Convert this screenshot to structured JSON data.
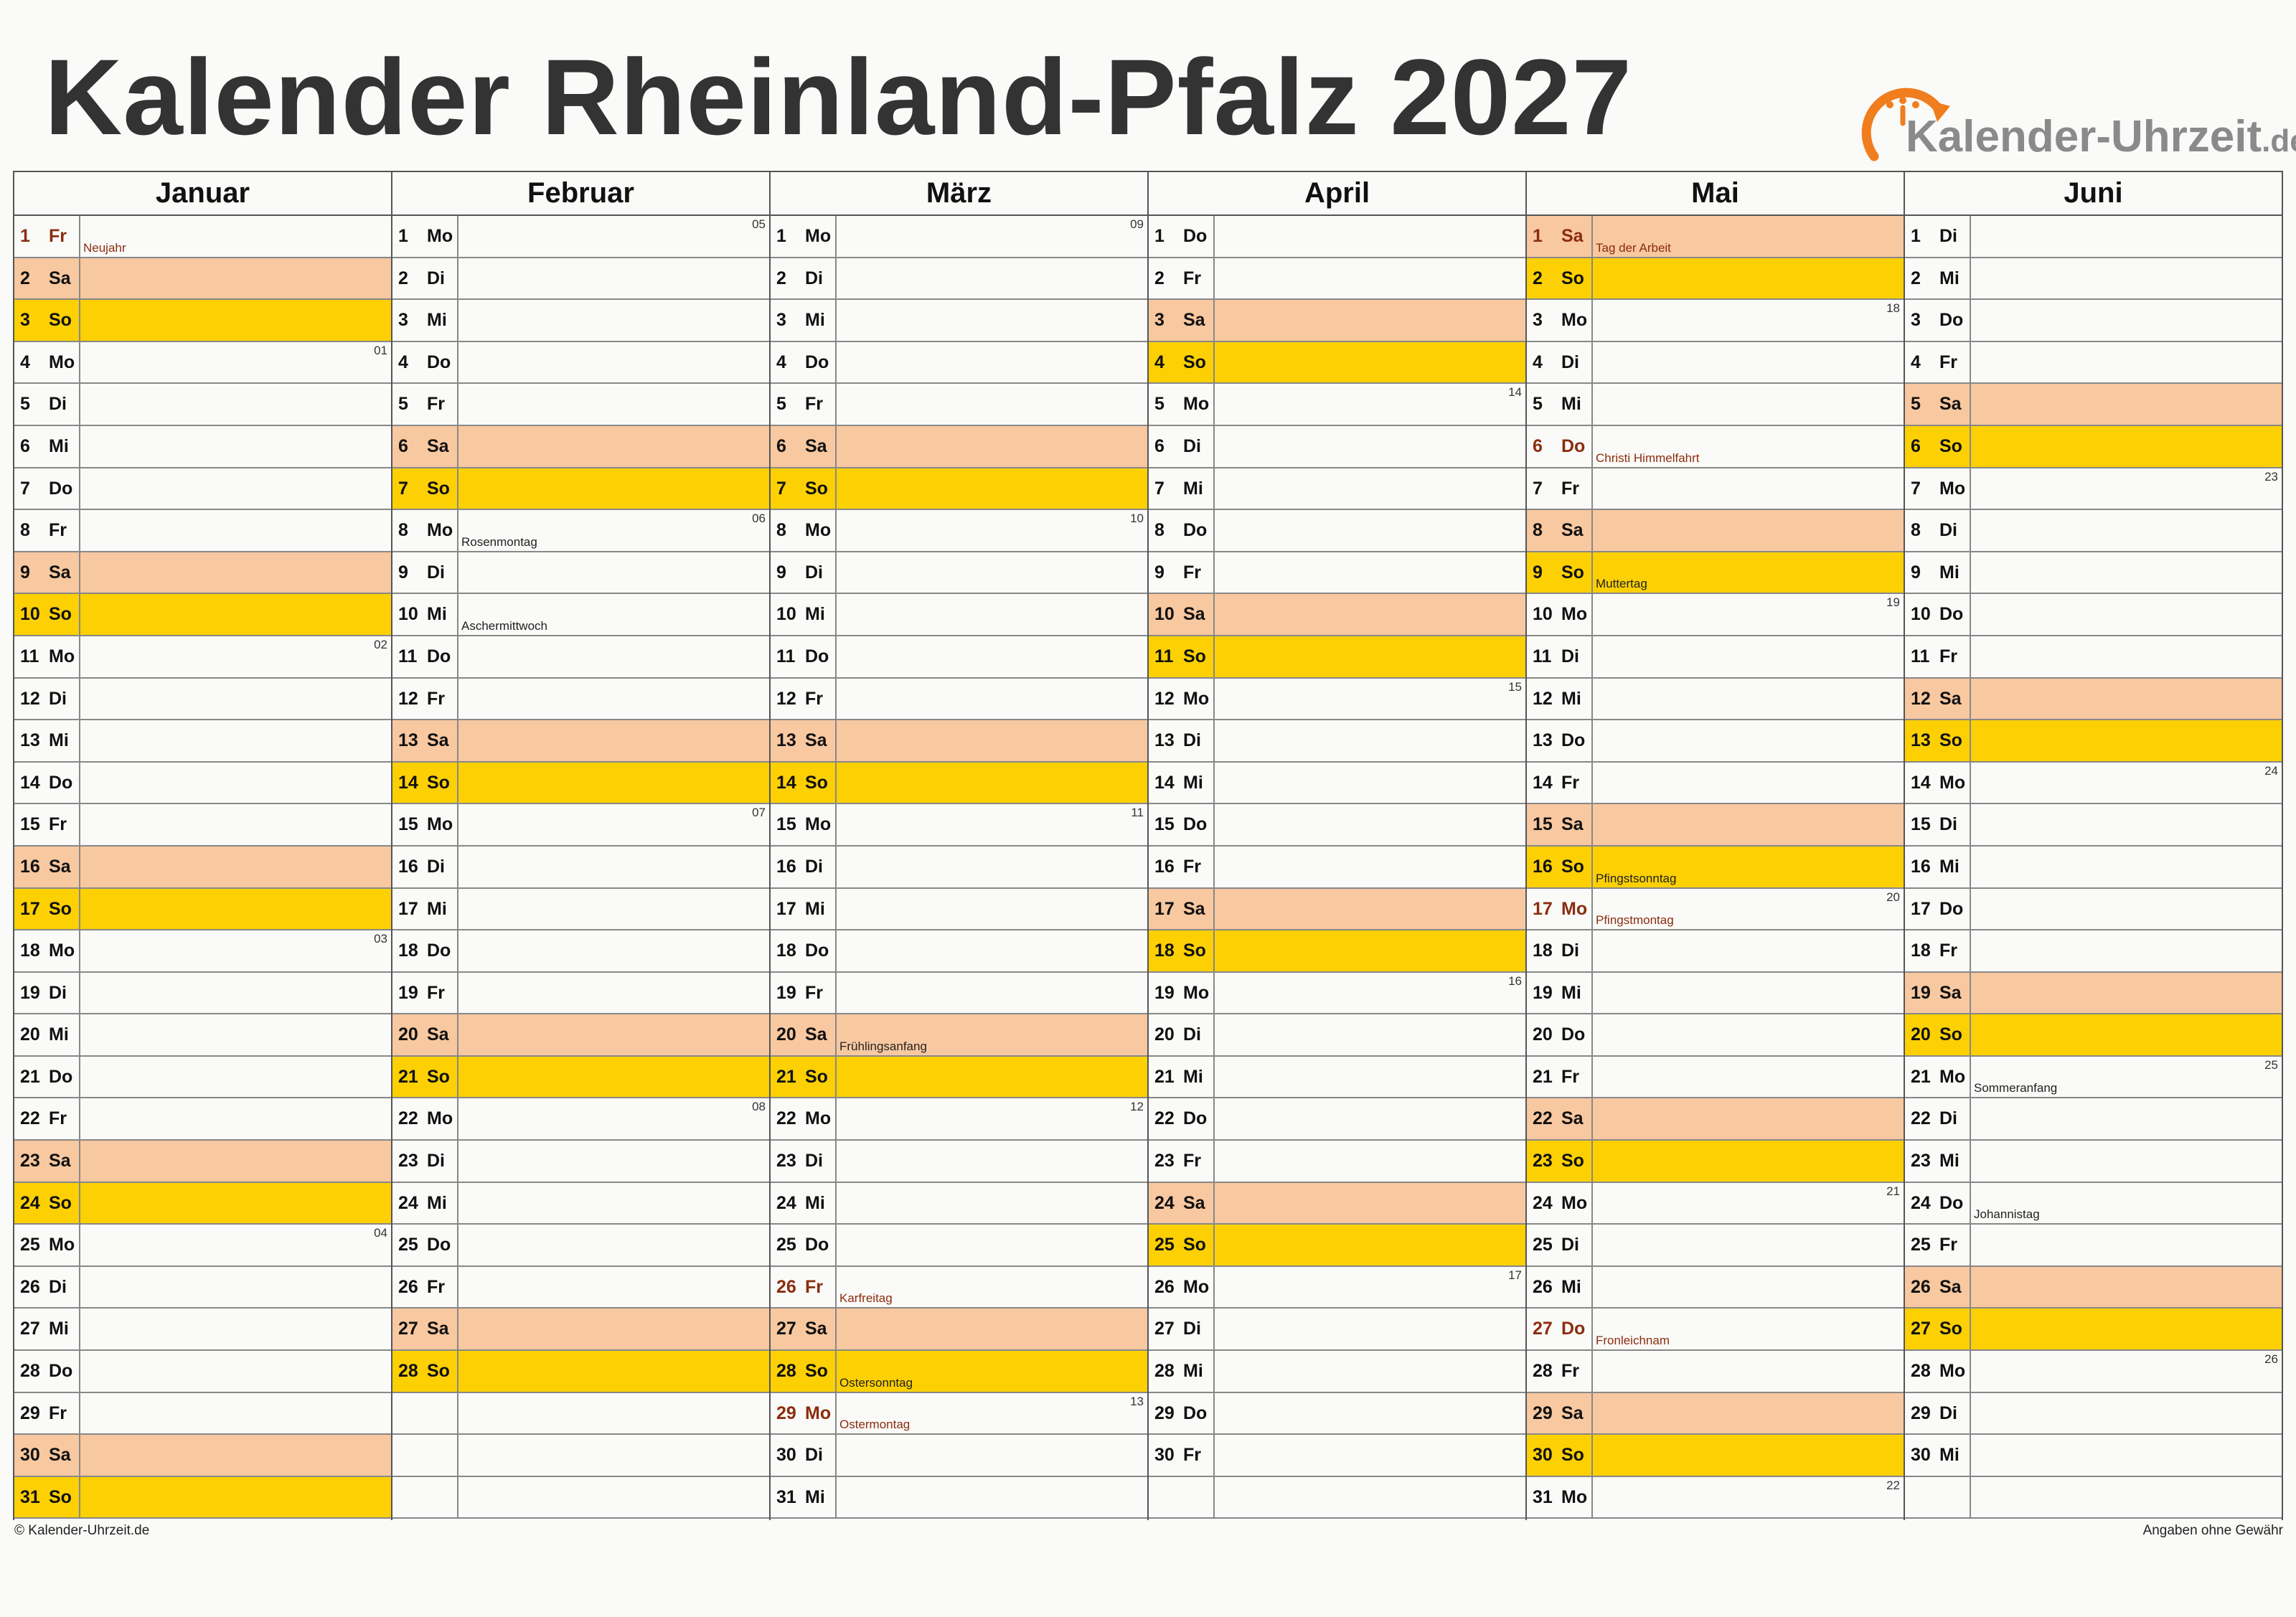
{
  "title": "Kalender Rheinland-Pfalz 2027",
  "logo": {
    "name": "Kalender-Uhrzeit",
    "tld": ".de",
    "color": "#f07d1e"
  },
  "colors": {
    "saturday": "#f8c8a0",
    "sunday": "#fcd003",
    "holiday_text": "#8b2d0e"
  },
  "footer": {
    "left": "© Kalender-Uhrzeit.de",
    "right": "Angaben ohne Gewähr"
  },
  "months": [
    {
      "name": "Januar",
      "days": [
        {
          "d": "1",
          "wd": "Fr",
          "note": "Neujahr",
          "holiday": true
        },
        {
          "d": "2",
          "wd": "Sa"
        },
        {
          "d": "3",
          "wd": "So"
        },
        {
          "d": "4",
          "wd": "Mo",
          "kw": "01"
        },
        {
          "d": "5",
          "wd": "Di"
        },
        {
          "d": "6",
          "wd": "Mi"
        },
        {
          "d": "7",
          "wd": "Do"
        },
        {
          "d": "8",
          "wd": "Fr"
        },
        {
          "d": "9",
          "wd": "Sa"
        },
        {
          "d": "10",
          "wd": "So"
        },
        {
          "d": "11",
          "wd": "Mo",
          "kw": "02"
        },
        {
          "d": "12",
          "wd": "Di"
        },
        {
          "d": "13",
          "wd": "Mi"
        },
        {
          "d": "14",
          "wd": "Do"
        },
        {
          "d": "15",
          "wd": "Fr"
        },
        {
          "d": "16",
          "wd": "Sa"
        },
        {
          "d": "17",
          "wd": "So"
        },
        {
          "d": "18",
          "wd": "Mo",
          "kw": "03"
        },
        {
          "d": "19",
          "wd": "Di"
        },
        {
          "d": "20",
          "wd": "Mi"
        },
        {
          "d": "21",
          "wd": "Do"
        },
        {
          "d": "22",
          "wd": "Fr"
        },
        {
          "d": "23",
          "wd": "Sa"
        },
        {
          "d": "24",
          "wd": "So"
        },
        {
          "d": "25",
          "wd": "Mo",
          "kw": "04"
        },
        {
          "d": "26",
          "wd": "Di"
        },
        {
          "d": "27",
          "wd": "Mi"
        },
        {
          "d": "28",
          "wd": "Do"
        },
        {
          "d": "29",
          "wd": "Fr"
        },
        {
          "d": "30",
          "wd": "Sa"
        },
        {
          "d": "31",
          "wd": "So"
        }
      ]
    },
    {
      "name": "Februar",
      "days": [
        {
          "d": "1",
          "wd": "Mo",
          "kw": "05"
        },
        {
          "d": "2",
          "wd": "Di"
        },
        {
          "d": "3",
          "wd": "Mi"
        },
        {
          "d": "4",
          "wd": "Do"
        },
        {
          "d": "5",
          "wd": "Fr"
        },
        {
          "d": "6",
          "wd": "Sa"
        },
        {
          "d": "7",
          "wd": "So"
        },
        {
          "d": "8",
          "wd": "Mo",
          "kw": "06",
          "note": "Rosenmontag"
        },
        {
          "d": "9",
          "wd": "Di"
        },
        {
          "d": "10",
          "wd": "Mi",
          "note": "Aschermittwoch"
        },
        {
          "d": "11",
          "wd": "Do"
        },
        {
          "d": "12",
          "wd": "Fr"
        },
        {
          "d": "13",
          "wd": "Sa"
        },
        {
          "d": "14",
          "wd": "So"
        },
        {
          "d": "15",
          "wd": "Mo",
          "kw": "07"
        },
        {
          "d": "16",
          "wd": "Di"
        },
        {
          "d": "17",
          "wd": "Mi"
        },
        {
          "d": "18",
          "wd": "Do"
        },
        {
          "d": "19",
          "wd": "Fr"
        },
        {
          "d": "20",
          "wd": "Sa"
        },
        {
          "d": "21",
          "wd": "So"
        },
        {
          "d": "22",
          "wd": "Mo",
          "kw": "08"
        },
        {
          "d": "23",
          "wd": "Di"
        },
        {
          "d": "24",
          "wd": "Mi"
        },
        {
          "d": "25",
          "wd": "Do"
        },
        {
          "d": "26",
          "wd": "Fr"
        },
        {
          "d": "27",
          "wd": "Sa"
        },
        {
          "d": "28",
          "wd": "So"
        }
      ]
    },
    {
      "name": "März",
      "days": [
        {
          "d": "1",
          "wd": "Mo",
          "kw": "09"
        },
        {
          "d": "2",
          "wd": "Di"
        },
        {
          "d": "3",
          "wd": "Mi"
        },
        {
          "d": "4",
          "wd": "Do"
        },
        {
          "d": "5",
          "wd": "Fr"
        },
        {
          "d": "6",
          "wd": "Sa"
        },
        {
          "d": "7",
          "wd": "So"
        },
        {
          "d": "8",
          "wd": "Mo",
          "kw": "10"
        },
        {
          "d": "9",
          "wd": "Di"
        },
        {
          "d": "10",
          "wd": "Mi"
        },
        {
          "d": "11",
          "wd": "Do"
        },
        {
          "d": "12",
          "wd": "Fr"
        },
        {
          "d": "13",
          "wd": "Sa"
        },
        {
          "d": "14",
          "wd": "So"
        },
        {
          "d": "15",
          "wd": "Mo",
          "kw": "11"
        },
        {
          "d": "16",
          "wd": "Di"
        },
        {
          "d": "17",
          "wd": "Mi"
        },
        {
          "d": "18",
          "wd": "Do"
        },
        {
          "d": "19",
          "wd": "Fr"
        },
        {
          "d": "20",
          "wd": "Sa",
          "note": "Frühlingsanfang"
        },
        {
          "d": "21",
          "wd": "So"
        },
        {
          "d": "22",
          "wd": "Mo",
          "kw": "12"
        },
        {
          "d": "23",
          "wd": "Di"
        },
        {
          "d": "24",
          "wd": "Mi"
        },
        {
          "d": "25",
          "wd": "Do"
        },
        {
          "d": "26",
          "wd": "Fr",
          "note": "Karfreitag",
          "holiday": true
        },
        {
          "d": "27",
          "wd": "Sa"
        },
        {
          "d": "28",
          "wd": "So",
          "note": "Ostersonntag"
        },
        {
          "d": "29",
          "wd": "Mo",
          "kw": "13",
          "note": "Ostermontag",
          "holiday": true
        },
        {
          "d": "30",
          "wd": "Di"
        },
        {
          "d": "31",
          "wd": "Mi"
        }
      ]
    },
    {
      "name": "April",
      "days": [
        {
          "d": "1",
          "wd": "Do"
        },
        {
          "d": "2",
          "wd": "Fr"
        },
        {
          "d": "3",
          "wd": "Sa"
        },
        {
          "d": "4",
          "wd": "So"
        },
        {
          "d": "5",
          "wd": "Mo",
          "kw": "14"
        },
        {
          "d": "6",
          "wd": "Di"
        },
        {
          "d": "7",
          "wd": "Mi"
        },
        {
          "d": "8",
          "wd": "Do"
        },
        {
          "d": "9",
          "wd": "Fr"
        },
        {
          "d": "10",
          "wd": "Sa"
        },
        {
          "d": "11",
          "wd": "So"
        },
        {
          "d": "12",
          "wd": "Mo",
          "kw": "15"
        },
        {
          "d": "13",
          "wd": "Di"
        },
        {
          "d": "14",
          "wd": "Mi"
        },
        {
          "d": "15",
          "wd": "Do"
        },
        {
          "d": "16",
          "wd": "Fr"
        },
        {
          "d": "17",
          "wd": "Sa"
        },
        {
          "d": "18",
          "wd": "So"
        },
        {
          "d": "19",
          "wd": "Mo",
          "kw": "16"
        },
        {
          "d": "20",
          "wd": "Di"
        },
        {
          "d": "21",
          "wd": "Mi"
        },
        {
          "d": "22",
          "wd": "Do"
        },
        {
          "d": "23",
          "wd": "Fr"
        },
        {
          "d": "24",
          "wd": "Sa"
        },
        {
          "d": "25",
          "wd": "So"
        },
        {
          "d": "26",
          "wd": "Mo",
          "kw": "17"
        },
        {
          "d": "27",
          "wd": "Di"
        },
        {
          "d": "28",
          "wd": "Mi"
        },
        {
          "d": "29",
          "wd": "Do"
        },
        {
          "d": "30",
          "wd": "Fr"
        }
      ]
    },
    {
      "name": "Mai",
      "days": [
        {
          "d": "1",
          "wd": "Sa",
          "note": "Tag der Arbeit",
          "holiday": true
        },
        {
          "d": "2",
          "wd": "So"
        },
        {
          "d": "3",
          "wd": "Mo",
          "kw": "18"
        },
        {
          "d": "4",
          "wd": "Di"
        },
        {
          "d": "5",
          "wd": "Mi"
        },
        {
          "d": "6",
          "wd": "Do",
          "note": "Christi Himmelfahrt",
          "holiday": true
        },
        {
          "d": "7",
          "wd": "Fr"
        },
        {
          "d": "8",
          "wd": "Sa"
        },
        {
          "d": "9",
          "wd": "So",
          "note": "Muttertag"
        },
        {
          "d": "10",
          "wd": "Mo",
          "kw": "19"
        },
        {
          "d": "11",
          "wd": "Di"
        },
        {
          "d": "12",
          "wd": "Mi"
        },
        {
          "d": "13",
          "wd": "Do"
        },
        {
          "d": "14",
          "wd": "Fr"
        },
        {
          "d": "15",
          "wd": "Sa"
        },
        {
          "d": "16",
          "wd": "So",
          "note": "Pfingstsonntag"
        },
        {
          "d": "17",
          "wd": "Mo",
          "kw": "20",
          "note": "Pfingstmontag",
          "holiday": true
        },
        {
          "d": "18",
          "wd": "Di"
        },
        {
          "d": "19",
          "wd": "Mi"
        },
        {
          "d": "20",
          "wd": "Do"
        },
        {
          "d": "21",
          "wd": "Fr"
        },
        {
          "d": "22",
          "wd": "Sa"
        },
        {
          "d": "23",
          "wd": "So"
        },
        {
          "d": "24",
          "wd": "Mo",
          "kw": "21"
        },
        {
          "d": "25",
          "wd": "Di"
        },
        {
          "d": "26",
          "wd": "Mi"
        },
        {
          "d": "27",
          "wd": "Do",
          "note": "Fronleichnam",
          "holiday": true
        },
        {
          "d": "28",
          "wd": "Fr"
        },
        {
          "d": "29",
          "wd": "Sa"
        },
        {
          "d": "30",
          "wd": "So"
        },
        {
          "d": "31",
          "wd": "Mo",
          "kw": "22"
        }
      ]
    },
    {
      "name": "Juni",
      "days": [
        {
          "d": "1",
          "wd": "Di"
        },
        {
          "d": "2",
          "wd": "Mi"
        },
        {
          "d": "3",
          "wd": "Do"
        },
        {
          "d": "4",
          "wd": "Fr"
        },
        {
          "d": "5",
          "wd": "Sa"
        },
        {
          "d": "6",
          "wd": "So"
        },
        {
          "d": "7",
          "wd": "Mo",
          "kw": "23"
        },
        {
          "d": "8",
          "wd": "Di"
        },
        {
          "d": "9",
          "wd": "Mi"
        },
        {
          "d": "10",
          "wd": "Do"
        },
        {
          "d": "11",
          "wd": "Fr"
        },
        {
          "d": "12",
          "wd": "Sa"
        },
        {
          "d": "13",
          "wd": "So"
        },
        {
          "d": "14",
          "wd": "Mo",
          "kw": "24"
        },
        {
          "d": "15",
          "wd": "Di"
        },
        {
          "d": "16",
          "wd": "Mi"
        },
        {
          "d": "17",
          "wd": "Do"
        },
        {
          "d": "18",
          "wd": "Fr"
        },
        {
          "d": "19",
          "wd": "Sa"
        },
        {
          "d": "20",
          "wd": "So"
        },
        {
          "d": "21",
          "wd": "Mo",
          "kw": "25",
          "note": "Sommeranfang"
        },
        {
          "d": "22",
          "wd": "Di"
        },
        {
          "d": "23",
          "wd": "Mi"
        },
        {
          "d": "24",
          "wd": "Do",
          "note": "Johannistag"
        },
        {
          "d": "25",
          "wd": "Fr"
        },
        {
          "d": "26",
          "wd": "Sa"
        },
        {
          "d": "27",
          "wd": "So"
        },
        {
          "d": "28",
          "wd": "Mo",
          "kw": "26"
        },
        {
          "d": "29",
          "wd": "Di"
        },
        {
          "d": "30",
          "wd": "Mi"
        }
      ]
    }
  ]
}
